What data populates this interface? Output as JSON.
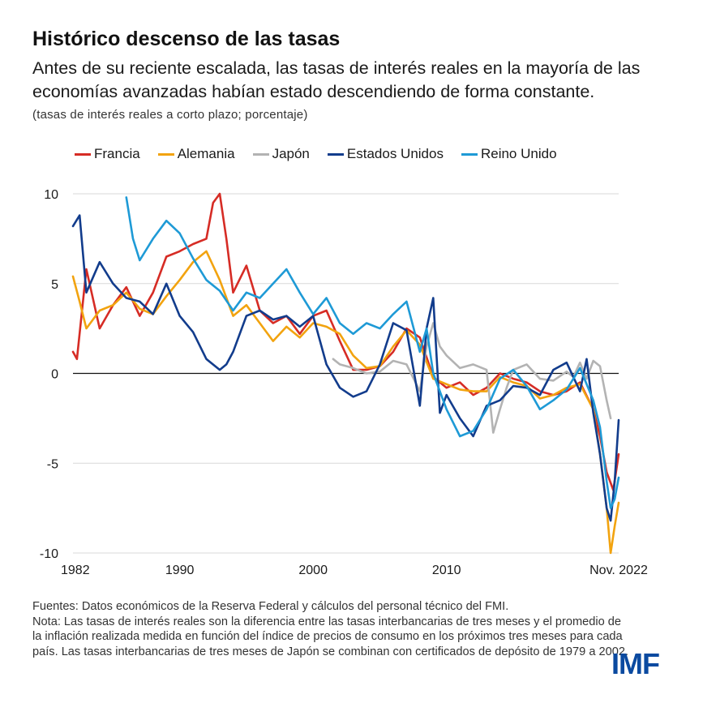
{
  "header": {
    "title": "Histórico descenso de las tasas",
    "subtitle": "Antes de su reciente escalada, las tasas de interés reales en la mayoría de las economías avanzadas habían estado descendiendo de forma constante.",
    "units": "(tasas de interés reales a corto plazo; porcentaje)"
  },
  "footnote": {
    "sources": "Fuentes: Datos económicos de la Reserva Federal y cálculos del personal técnico del FMI.",
    "note": "Nota: Las tasas de interés reales son la diferencia entre las tasas interbancarias de tres meses y el promedio de la inflación realizada medida en función del índice de precios de consumo en los próximos tres meses para cada país. Las tasas interbancarias de tres meses de Japón se combinan con certificados de depósito de 1979 a 2002."
  },
  "logo": {
    "text": "IMF"
  },
  "chart_data": {
    "type": "line",
    "title": "Histórico descenso de las tasas",
    "xlabel": "",
    "ylabel": "",
    "xlim": [
      1982,
      2022.9
    ],
    "ylim": [
      -10,
      10
    ],
    "y_ticks": [
      10,
      5,
      0,
      -5,
      -10
    ],
    "y_tick_labels": [
      "10",
      "5",
      "0",
      "-5",
      "-10"
    ],
    "x_ticks": [
      1982,
      1990,
      2000,
      2010,
      2022.9
    ],
    "x_tick_labels": [
      "1982",
      "1990",
      "2000",
      "2010",
      "Nov. 2022"
    ],
    "grid": "horizontal",
    "zero_line": true,
    "legend_position": "top",
    "series": [
      {
        "name": "Francia",
        "color": "#d62c25",
        "x": [
          1982,
          1982.3,
          1983,
          1984,
          1985,
          1986,
          1987,
          1988,
          1989,
          1990,
          1991,
          1992,
          1992.5,
          1993,
          1993.5,
          1994,
          1995,
          1996,
          1997,
          1998,
          1999,
          2000,
          2001,
          2002,
          2003,
          2004,
          2005,
          2006,
          2007,
          2008,
          2009,
          2010,
          2011,
          2012,
          2013,
          2014,
          2015,
          2016,
          2017,
          2018,
          2019,
          2020,
          2021,
          2021.5,
          2022,
          2022.5,
          2022.9
        ],
        "values": [
          1.2,
          0.8,
          5.8,
          2.5,
          3.8,
          4.8,
          3.2,
          4.5,
          6.5,
          6.8,
          7.2,
          7.5,
          9.5,
          10.0,
          7.5,
          4.5,
          6.0,
          3.5,
          2.8,
          3.2,
          2.2,
          3.2,
          3.5,
          1.8,
          0.2,
          0.2,
          0.4,
          1.2,
          2.5,
          2.0,
          -0.2,
          -0.8,
          -0.5,
          -1.2,
          -0.8,
          0.0,
          -0.3,
          -0.5,
          -1.0,
          -1.2,
          -1.0,
          -0.5,
          -2.0,
          -3.5,
          -5.5,
          -6.5,
          -4.5
        ]
      },
      {
        "name": "Alemania",
        "color": "#f2a30f",
        "x": [
          1982,
          1982.5,
          1983,
          1984,
          1985,
          1986,
          1987,
          1988,
          1989,
          1990,
          1991,
          1992,
          1993,
          1994,
          1995,
          1996,
          1997,
          1998,
          1999,
          2000,
          2001,
          2002,
          2003,
          2004,
          2005,
          2006,
          2007,
          2008,
          2009,
          2010,
          2011,
          2012,
          2013,
          2014,
          2015,
          2016,
          2017,
          2018,
          2019,
          2020,
          2021,
          2021.5,
          2022,
          2022.3,
          2022.6,
          2022.9
        ],
        "values": [
          5.4,
          4.0,
          2.5,
          3.5,
          3.8,
          4.5,
          3.6,
          3.3,
          4.3,
          5.2,
          6.2,
          6.8,
          5.2,
          3.2,
          3.8,
          2.8,
          1.8,
          2.6,
          2.0,
          2.8,
          2.6,
          2.2,
          1.0,
          0.3,
          0.4,
          1.5,
          2.4,
          1.6,
          -0.3,
          -0.6,
          -0.9,
          -1.0,
          -1.0,
          -0.2,
          -0.5,
          -0.7,
          -1.4,
          -1.2,
          -0.8,
          -0.6,
          -2.0,
          -4.5,
          -7.5,
          -10.0,
          -8.5,
          -7.2
        ]
      },
      {
        "name": "Japón",
        "color": "#b3b3b3",
        "x": [
          2001.5,
          2002,
          2003,
          2004,
          2005,
          2006,
          2007,
          2008,
          2008.5,
          2009,
          2009.5,
          2010,
          2011,
          2012,
          2013,
          2013.5,
          2014,
          2014.5,
          2015,
          2016,
          2017,
          2018,
          2019,
          2019.5,
          2020,
          2020.5,
          2021,
          2021.5,
          2022,
          2022.3
        ],
        "values": [
          0.8,
          0.5,
          0.3,
          0.0,
          0.1,
          0.7,
          0.5,
          -1.0,
          1.5,
          2.8,
          1.5,
          1.0,
          0.3,
          0.5,
          0.2,
          -3.3,
          -2.0,
          -0.8,
          0.2,
          0.5,
          -0.3,
          -0.4,
          0.1,
          -0.2,
          0.6,
          -0.3,
          0.7,
          0.4,
          -1.5,
          -2.5
        ]
      },
      {
        "name": "Estados Unidos",
        "color": "#123c8c",
        "x": [
          1982,
          1982.5,
          1983,
          1984,
          1985,
          1986,
          1987,
          1988,
          1989,
          1990,
          1991,
          1992,
          1993,
          1993.5,
          1994,
          1995,
          1996,
          1997,
          1998,
          1999,
          2000,
          2001,
          2002,
          2003,
          2004,
          2005,
          2006,
          2007,
          2008,
          2008.5,
          2009,
          2009.5,
          2010,
          2011,
          2012,
          2013,
          2014,
          2015,
          2016,
          2017,
          2018,
          2019,
          2020,
          2020.5,
          2021,
          2021.5,
          2022,
          2022.3,
          2022.6,
          2022.9
        ],
        "values": [
          8.2,
          8.8,
          4.5,
          6.2,
          5.0,
          4.2,
          4.0,
          3.3,
          5.0,
          3.2,
          2.3,
          0.8,
          0.2,
          0.5,
          1.2,
          3.2,
          3.5,
          3.0,
          3.2,
          2.6,
          3.2,
          0.5,
          -0.8,
          -1.3,
          -1.0,
          0.5,
          2.8,
          2.4,
          -1.8,
          2.5,
          4.2,
          -2.2,
          -1.2,
          -2.5,
          -3.5,
          -1.8,
          -1.5,
          -0.7,
          -0.8,
          -1.2,
          0.2,
          0.6,
          -1.0,
          0.8,
          -2.2,
          -4.5,
          -7.5,
          -8.2,
          -6.0,
          -2.6
        ]
      },
      {
        "name": "Reino Unido",
        "color": "#1e9ad6",
        "x": [
          1986,
          1986.5,
          1987,
          1988,
          1989,
          1990,
          1991,
          1992,
          1993,
          1994,
          1995,
          1996,
          1997,
          1998,
          1999,
          2000,
          2001,
          2002,
          2003,
          2004,
          2005,
          2006,
          2007,
          2008,
          2008.5,
          2009,
          2010,
          2011,
          2012,
          2013,
          2014,
          2015,
          2016,
          2017,
          2018,
          2019,
          2020,
          2021,
          2021.5,
          2022,
          2022.3,
          2022.6,
          2022.9
        ],
        "values": [
          9.8,
          7.5,
          6.3,
          7.5,
          8.5,
          7.8,
          6.4,
          5.2,
          4.6,
          3.5,
          4.5,
          4.2,
          5.0,
          5.8,
          4.5,
          3.3,
          4.2,
          2.8,
          2.2,
          2.8,
          2.5,
          3.3,
          4.0,
          1.2,
          2.5,
          0.0,
          -2.0,
          -3.5,
          -3.2,
          -2.0,
          -0.3,
          0.2,
          -0.7,
          -2.0,
          -1.5,
          -0.9,
          0.3,
          -1.5,
          -3.0,
          -6.0,
          -7.5,
          -7.0,
          -5.8
        ]
      }
    ]
  }
}
